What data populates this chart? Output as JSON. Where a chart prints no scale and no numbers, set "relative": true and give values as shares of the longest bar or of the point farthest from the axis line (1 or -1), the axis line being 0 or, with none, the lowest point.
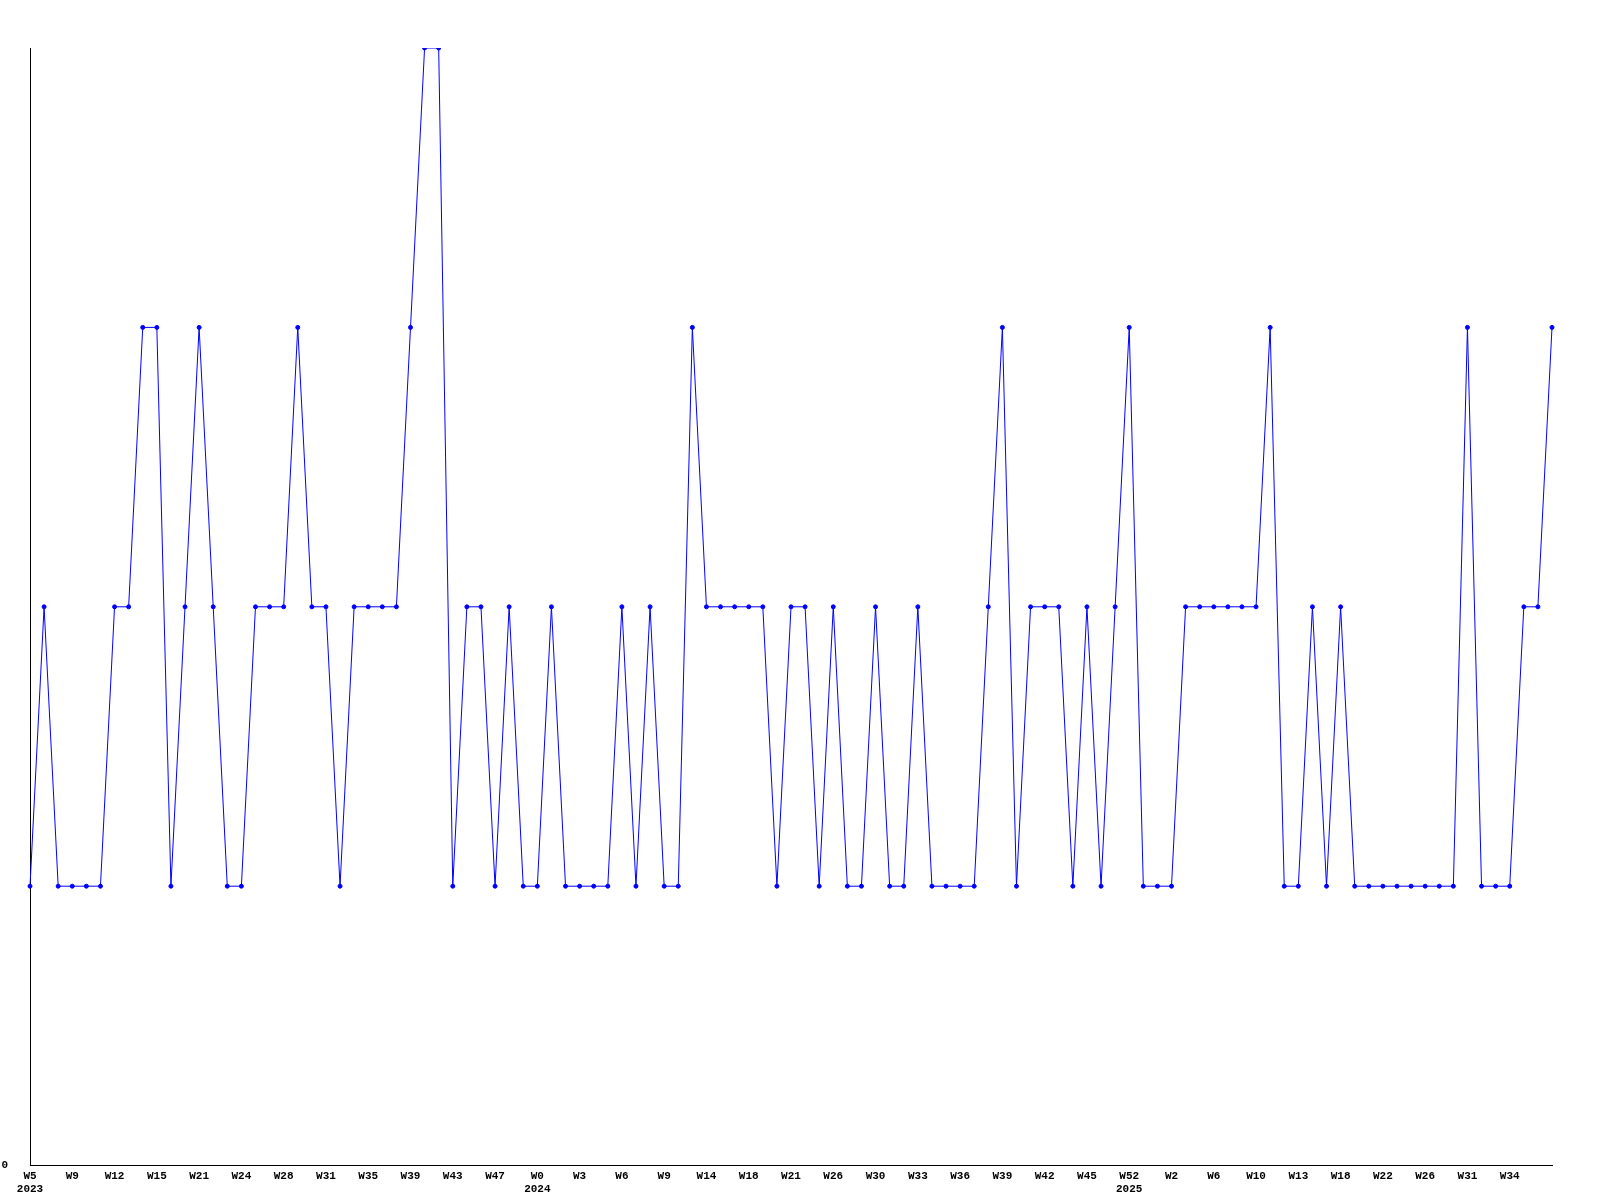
{
  "chart_data": {
    "type": "line",
    "relative": true,
    "marker": "circle",
    "legend": false,
    "grid": false,
    "annotations": [
      "0"
    ],
    "categories": [
      "W5\n2023",
      null,
      null,
      "W9",
      null,
      null,
      "W12",
      null,
      null,
      "W15",
      null,
      null,
      "W21",
      null,
      null,
      "W24",
      null,
      null,
      "W28",
      null,
      null,
      "W31",
      null,
      null,
      "W35",
      null,
      null,
      "W39",
      null,
      null,
      "W43",
      null,
      null,
      "W47",
      null,
      null,
      "W0\n2024",
      null,
      null,
      "W3",
      null,
      null,
      "W6",
      null,
      null,
      "W9",
      null,
      null,
      "W14",
      null,
      null,
      "W18",
      null,
      null,
      "W21",
      null,
      null,
      "W26",
      null,
      null,
      "W30",
      null,
      null,
      "W33",
      null,
      null,
      "W36",
      null,
      null,
      "W39",
      null,
      null,
      "W42",
      null,
      null,
      "W45",
      null,
      null,
      "W52\n2025",
      null,
      null,
      "W2",
      null,
      null,
      "W6",
      null,
      null,
      "W10",
      null,
      null,
      "W13",
      null,
      null,
      "W18",
      null,
      null,
      "W22",
      null,
      null,
      "W26",
      null,
      null,
      "W31",
      null,
      null,
      "W34",
      null,
      null,
      null
    ],
    "series": [
      {
        "color": "#0000ff",
        "values": [
          0.25,
          0.5,
          0.25,
          0.25,
          0.25,
          0.25,
          0.5,
          0.5,
          0.75,
          0.75,
          0.25,
          0.5,
          0.75,
          0.5,
          0.25,
          0.25,
          0.5,
          0.5,
          0.5,
          0.75,
          0.5,
          0.5,
          0.25,
          0.5,
          0.5,
          0.5,
          0.5,
          0.75,
          1,
          1,
          0.25,
          0.5,
          0.5,
          0.25,
          0.5,
          0.25,
          0.25,
          0.5,
          0.25,
          0.25,
          0.25,
          0.25,
          0.5,
          0.25,
          0.5,
          0.25,
          0.25,
          0.75,
          0.5,
          0.5,
          0.5,
          0.5,
          0.5,
          0.25,
          0.5,
          0.5,
          0.25,
          0.5,
          0.25,
          0.25,
          0.5,
          0.25,
          0.25,
          0.5,
          0.25,
          0.25,
          0.25,
          0.25,
          0.5,
          0.75,
          0.25,
          0.5,
          0.5,
          0.5,
          0.25,
          0.5,
          0.25,
          0.5,
          0.75,
          0.25,
          0.25,
          0.25,
          0.5,
          0.5,
          0.5,
          0.5,
          0.5,
          0.5,
          0.75,
          0.25,
          0.25,
          0.5,
          0.25,
          0.5,
          0.25,
          0.25,
          0.25,
          0.25,
          0.25,
          0.25,
          0.25,
          0.25,
          0.75,
          0.25,
          0.25,
          0.25,
          0.5,
          0.5,
          0.75
        ]
      }
    ]
  }
}
